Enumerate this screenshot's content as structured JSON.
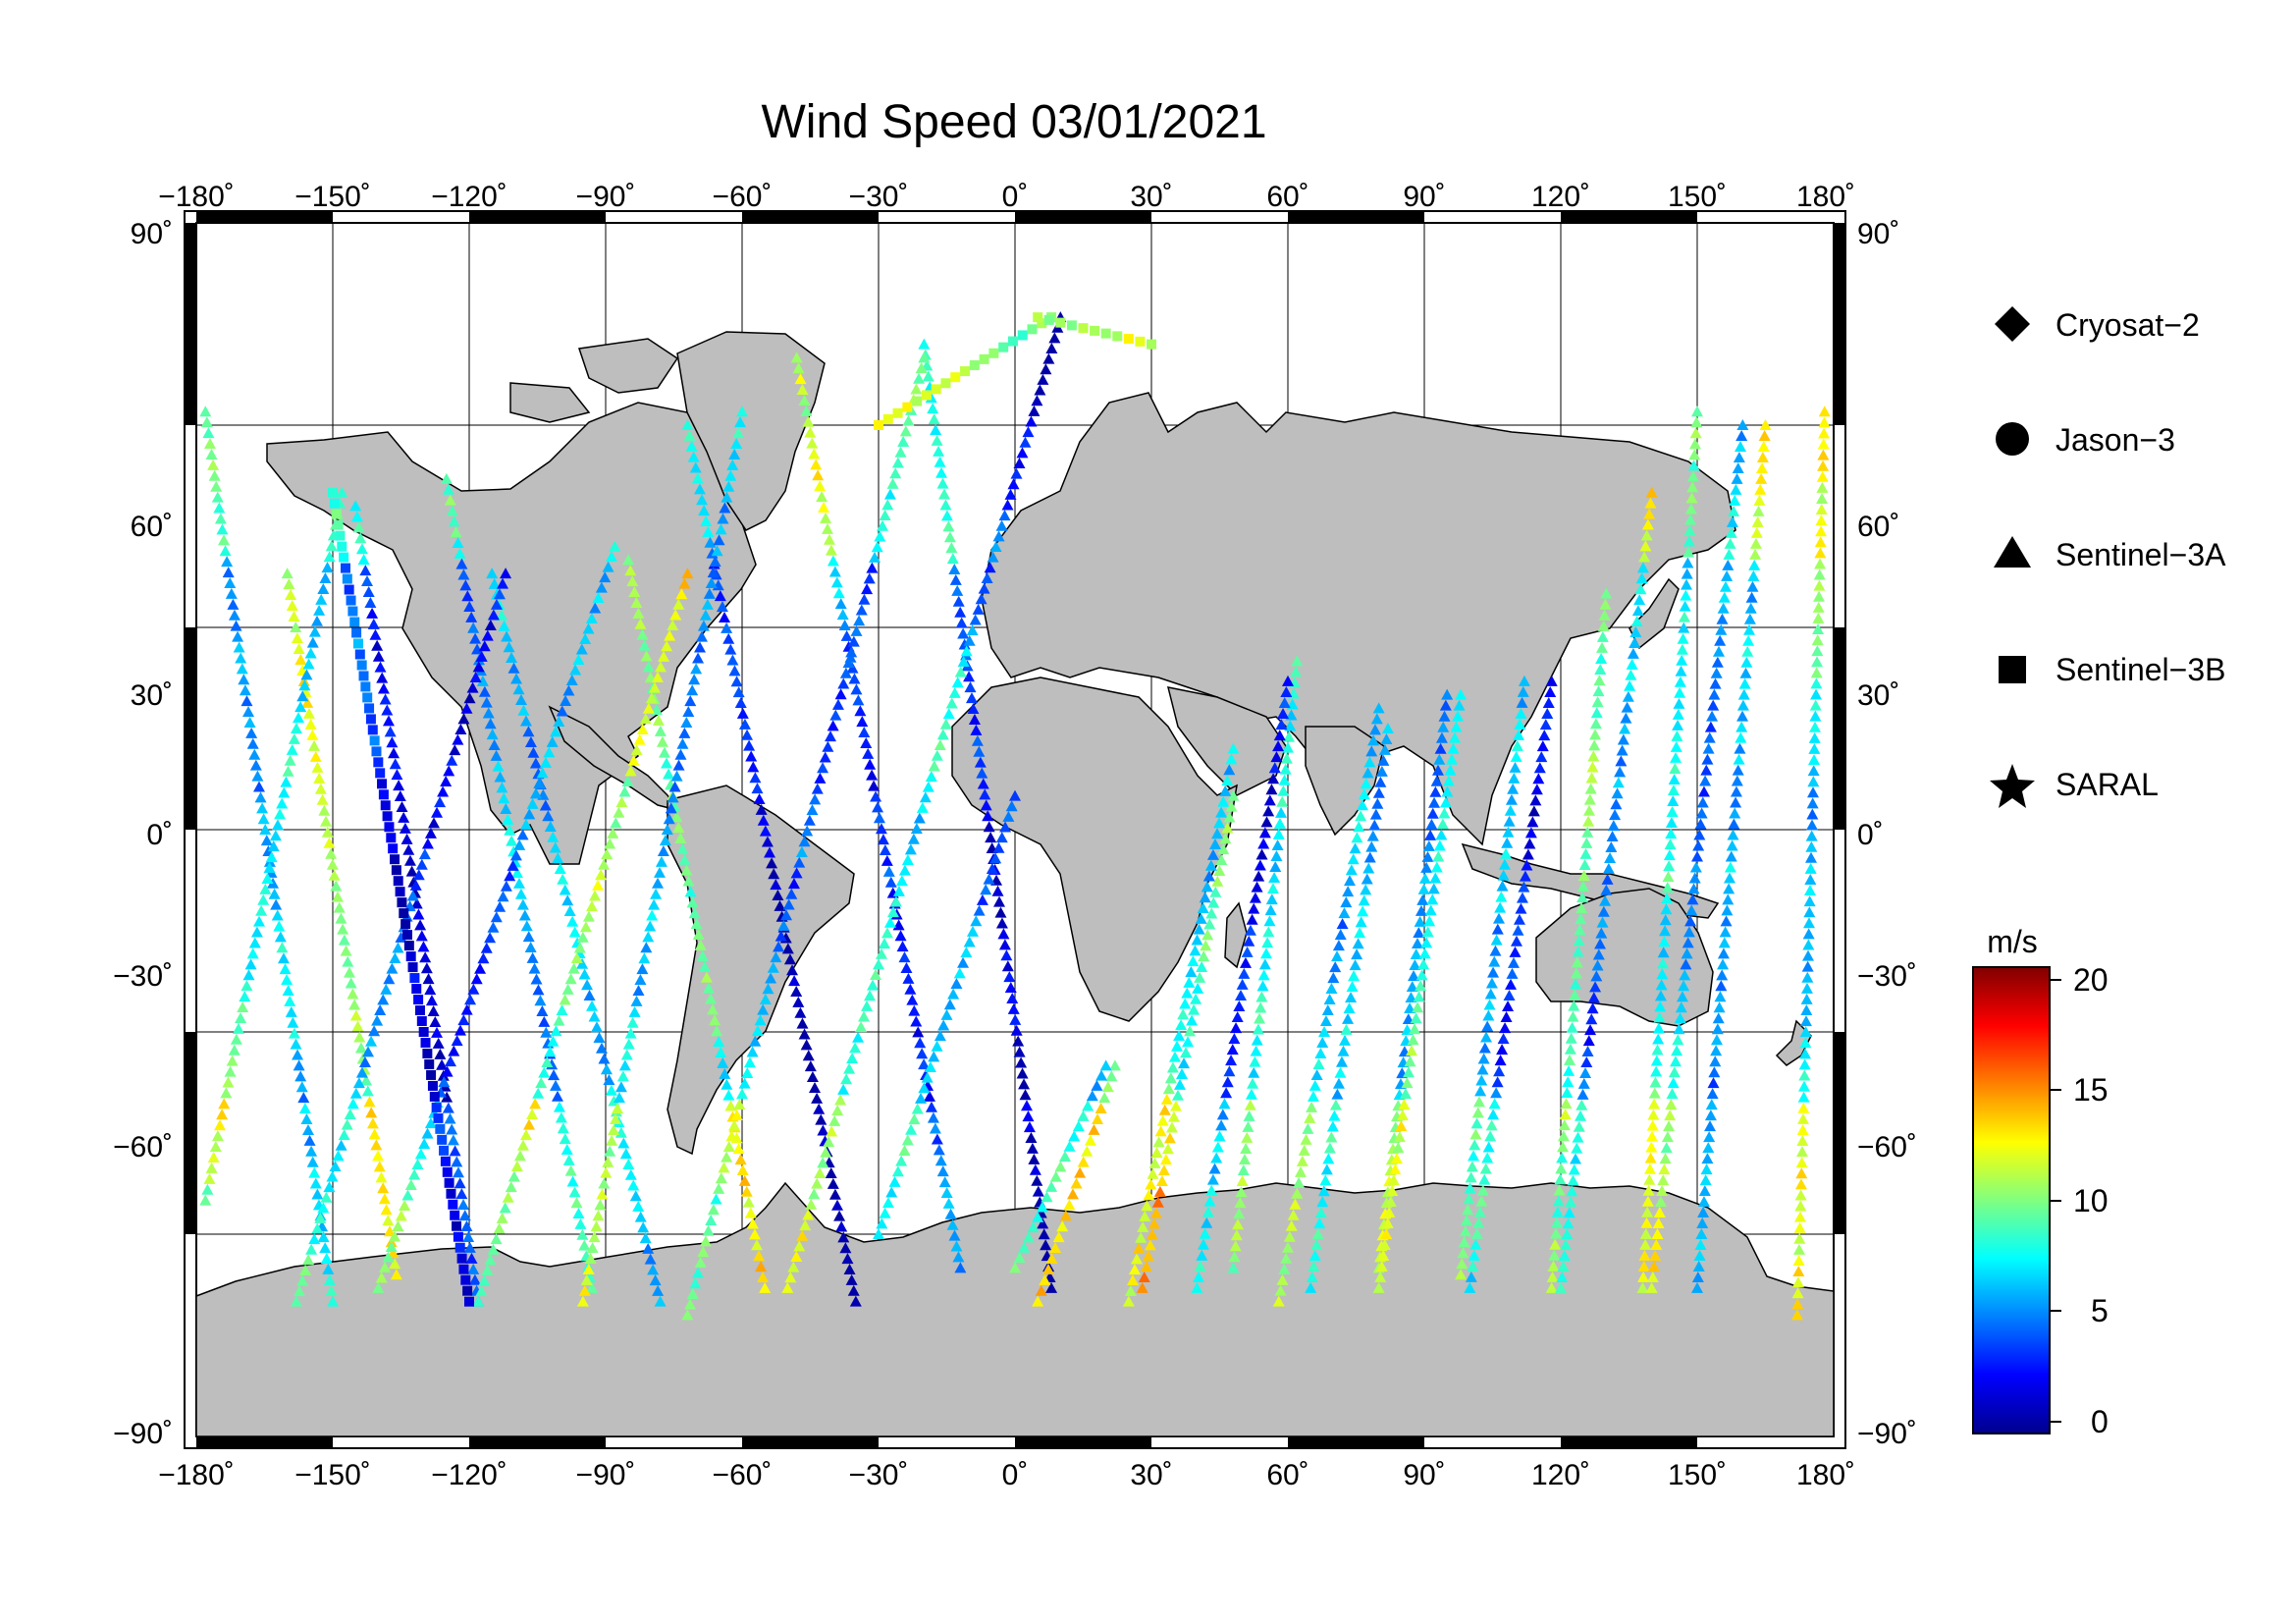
{
  "title": "Wind Speed 03/01/2021",
  "x_ticks": [
    "−180˚",
    "−150˚",
    "−120˚",
    "−90˚",
    "−60˚",
    "−30˚",
    "0˚",
    "30˚",
    "60˚",
    "90˚",
    "120˚",
    "150˚",
    "180˚"
  ],
  "y_ticks": [
    "90˚",
    "60˚",
    "30˚",
    "0˚",
    "−30˚",
    "−60˚",
    "−90˚"
  ],
  "lon_values": [
    -180,
    -150,
    -120,
    -90,
    -60,
    -30,
    0,
    30,
    60,
    90,
    120,
    150,
    180
  ],
  "lat_values": [
    90,
    60,
    30,
    0,
    -30,
    -60,
    -90
  ],
  "legend": [
    {
      "label": "Cryosat−2",
      "symbol": "diamond"
    },
    {
      "label": "Jason−3",
      "symbol": "circle"
    },
    {
      "label": "Sentinel−3A",
      "symbol": "triangle"
    },
    {
      "label": "Sentinel−3B",
      "symbol": "square"
    },
    {
      "label": "SARAL",
      "symbol": "star"
    }
  ],
  "colorbar": {
    "unit": "m/s",
    "min": 0,
    "max": 20,
    "ticks": [
      "20",
      "15",
      "10",
      "5",
      "0"
    ],
    "tick_values": [
      20,
      15,
      10,
      5,
      0
    ],
    "colors": [
      "#00008f",
      "#0000ff",
      "#0080ff",
      "#00ffff",
      "#80ff80",
      "#ffff00",
      "#ff8000",
      "#ff0000",
      "#800000"
    ]
  },
  "colors": {
    "land": "#bebebe",
    "coastline": "#000000",
    "ocean": "#ffffff",
    "grid": "#000000"
  },
  "chart_data": {
    "type": "scatter",
    "title": "Wind Speed 03/01/2021",
    "xlim": [
      -180,
      180
    ],
    "ylim": [
      -90,
      90
    ],
    "value_unit": "m/s",
    "value_range": [
      0,
      20
    ],
    "grid": true,
    "legend_placement": "right",
    "series": [
      {
        "name": "Sentinel−3A",
        "symbol": "triangle",
        "tracks": [
          {
            "lon0": -178,
            "lat0": 62,
            "lon1": -150,
            "lat1": -70
          },
          {
            "lon0": -160,
            "lat0": 38,
            "lon1": -136,
            "lat1": -66
          },
          {
            "lon0": -145,
            "lat0": 48,
            "lon1": -118,
            "lat1": -70
          },
          {
            "lon0": -125,
            "lat0": 52,
            "lon1": -93,
            "lat1": -68
          },
          {
            "lon0": -115,
            "lat0": 38,
            "lon1": -78,
            "lat1": -70
          },
          {
            "lon0": -85,
            "lat0": 40,
            "lon1": -55,
            "lat1": -68
          },
          {
            "lon0": -72,
            "lat0": 60,
            "lon1": -35,
            "lat1": -70
          },
          {
            "lon0": -48,
            "lat0": 70,
            "lon1": -12,
            "lat1": -65
          },
          {
            "lon0": -20,
            "lat0": 72,
            "lon1": 8,
            "lat1": -68
          },
          {
            "lon0": 22,
            "lat0": -35,
            "lon1": 5,
            "lat1": -70
          },
          {
            "lon0": 48,
            "lat0": 5,
            "lon1": 28,
            "lat1": -68
          },
          {
            "lon0": 62,
            "lat0": 25,
            "lon1": 48,
            "lat1": -65
          },
          {
            "lon0": 82,
            "lat0": 15,
            "lon1": 65,
            "lat1": -68
          },
          {
            "lon0": 95,
            "lat0": 20,
            "lon1": 80,
            "lat1": -65
          },
          {
            "lon0": 112,
            "lat0": 22,
            "lon1": 98,
            "lat1": -66
          },
          {
            "lon0": 130,
            "lat0": 35,
            "lon1": 118,
            "lat1": -68
          },
          {
            "lon0": 150,
            "lat0": 62,
            "lon1": 138,
            "lat1": -68
          },
          {
            "lon0": 165,
            "lat0": 60,
            "lon1": 150,
            "lat1": -68
          },
          {
            "lon0": 178,
            "lat0": 62,
            "lon1": 172,
            "lat1": -72
          },
          {
            "lon0": -178,
            "lat0": -55,
            "lon1": -148,
            "lat1": 50
          },
          {
            "lon0": -158,
            "lat0": -70,
            "lon1": -112,
            "lat1": 38
          },
          {
            "lon0": -140,
            "lat0": -68,
            "lon1": -88,
            "lat1": 42
          },
          {
            "lon0": -118,
            "lat0": -70,
            "lon1": -72,
            "lat1": 38
          },
          {
            "lon0": -95,
            "lat0": -70,
            "lon1": -60,
            "lat1": 62
          },
          {
            "lon0": -72,
            "lat0": -72,
            "lon1": -20,
            "lat1": 70
          },
          {
            "lon0": -50,
            "lat0": -68,
            "lon1": 10,
            "lat1": 76
          },
          {
            "lon0": -30,
            "lat0": -60,
            "lon1": 0,
            "lat1": 5
          },
          {
            "lon0": 0,
            "lat0": -65,
            "lon1": 20,
            "lat1": -35
          },
          {
            "lon0": 25,
            "lat0": -70,
            "lon1": 48,
            "lat1": 12
          },
          {
            "lon0": 40,
            "lat0": -68,
            "lon1": 60,
            "lat1": 22
          },
          {
            "lon0": 58,
            "lat0": -70,
            "lon1": 80,
            "lat1": 18
          },
          {
            "lon0": 80,
            "lat0": -68,
            "lon1": 98,
            "lat1": 20
          },
          {
            "lon0": 100,
            "lat0": -68,
            "lon1": 118,
            "lat1": 22
          },
          {
            "lon0": 120,
            "lat0": -68,
            "lon1": 140,
            "lat1": 50
          },
          {
            "lon0": 140,
            "lat0": -68,
            "lon1": 160,
            "lat1": 60
          }
        ]
      },
      {
        "name": "Sentinel−3B",
        "symbol": "square",
        "tracks": [
          {
            "lon0": -150,
            "lat0": 50,
            "lon1": -120,
            "lat1": -70
          },
          {
            "lon0": -30,
            "lat0": 60,
            "lon1": 8,
            "lat1": 76
          },
          {
            "lon0": 5,
            "lat0": 76,
            "lon1": 30,
            "lat1": 72
          }
        ]
      }
    ]
  }
}
